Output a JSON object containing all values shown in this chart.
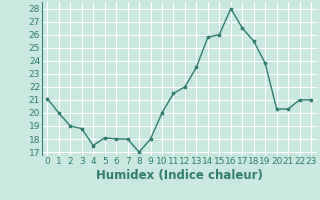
{
  "x": [
    0,
    1,
    2,
    3,
    4,
    5,
    6,
    7,
    8,
    9,
    10,
    11,
    12,
    13,
    14,
    15,
    16,
    17,
    18,
    19,
    20,
    21,
    22,
    23
  ],
  "y": [
    21.1,
    20.0,
    19.0,
    18.8,
    17.5,
    18.1,
    18.0,
    18.0,
    17.0,
    18.0,
    20.0,
    21.5,
    22.0,
    23.5,
    25.8,
    26.0,
    28.0,
    26.5,
    25.5,
    23.8,
    20.3,
    20.3,
    21.0,
    21.0
  ],
  "line_color": "#2e7d6e",
  "marker_color": "#2e7d6e",
  "bg_color": "#c8e8e0",
  "grid_color": "#ffffff",
  "xlabel": "Humidex (Indice chaleur)",
  "ylabel_ticks": [
    17,
    18,
    19,
    20,
    21,
    22,
    23,
    24,
    25,
    26,
    27,
    28
  ],
  "ylim": [
    16.7,
    28.5
  ],
  "xlim": [
    -0.5,
    23.5
  ],
  "tick_fontsize": 6.5,
  "xlabel_fontsize": 8.5
}
